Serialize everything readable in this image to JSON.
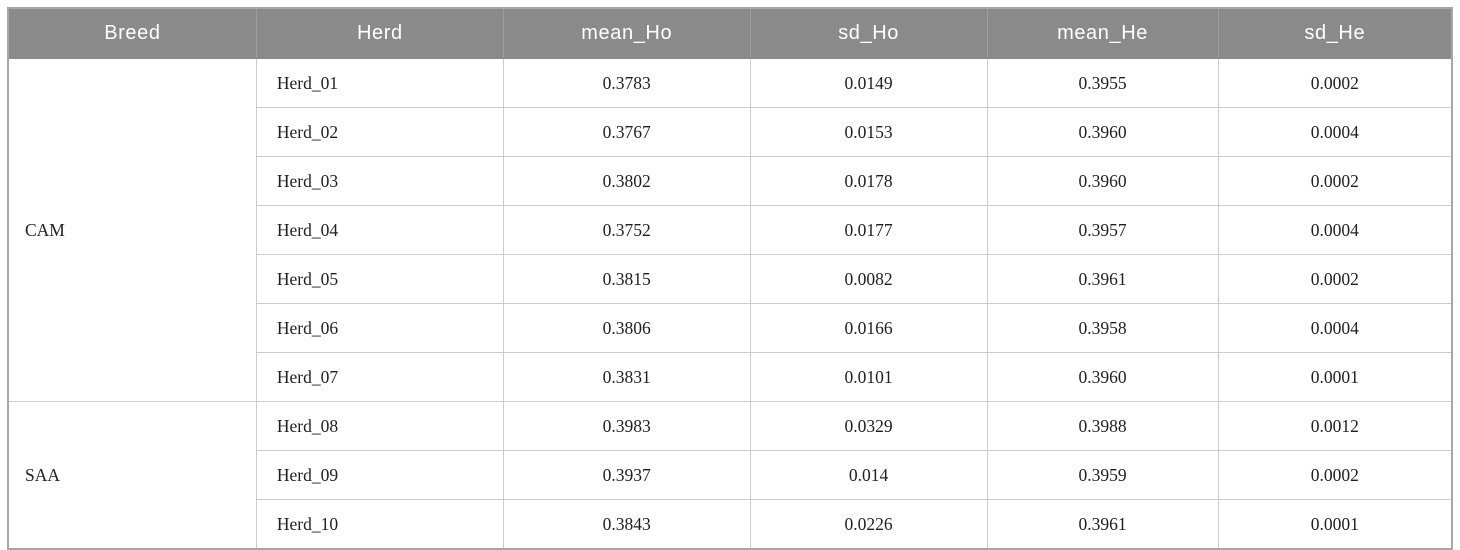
{
  "table": {
    "columns": [
      "Breed",
      "Herd",
      "mean_Ho",
      "sd_Ho",
      "mean_He",
      "sd_He"
    ],
    "groups": [
      {
        "breed": "CAM",
        "rows": [
          {
            "herd": "Herd_01",
            "mean_ho": "0.3783",
            "sd_ho": "0.0149",
            "mean_he": "0.3955",
            "sd_he": "0.0002"
          },
          {
            "herd": "Herd_02",
            "mean_ho": "0.3767",
            "sd_ho": "0.0153",
            "mean_he": "0.3960",
            "sd_he": "0.0004"
          },
          {
            "herd": "Herd_03",
            "mean_ho": "0.3802",
            "sd_ho": "0.0178",
            "mean_he": "0.3960",
            "sd_he": "0.0002"
          },
          {
            "herd": "Herd_04",
            "mean_ho": "0.3752",
            "sd_ho": "0.0177",
            "mean_he": "0.3957",
            "sd_he": "0.0004"
          },
          {
            "herd": "Herd_05",
            "mean_ho": "0.3815",
            "sd_ho": "0.0082",
            "mean_he": "0.3961",
            "sd_he": "0.0002"
          },
          {
            "herd": "Herd_06",
            "mean_ho": "0.3806",
            "sd_ho": "0.0166",
            "mean_he": "0.3958",
            "sd_he": "0.0004"
          },
          {
            "herd": "Herd_07",
            "mean_ho": "0.3831",
            "sd_ho": "0.0101",
            "mean_he": "0.3960",
            "sd_he": "0.0001"
          }
        ]
      },
      {
        "breed": "SAA",
        "rows": [
          {
            "herd": "Herd_08",
            "mean_ho": "0.3983",
            "sd_ho": "0.0329",
            "mean_he": "0.3988",
            "sd_he": "0.0012"
          },
          {
            "herd": "Herd_09",
            "mean_ho": "0.3937",
            "sd_ho": "0.014",
            "mean_he": "0.3959",
            "sd_he": "0.0002"
          },
          {
            "herd": "Herd_10",
            "mean_ho": "0.3843",
            "sd_ho": "0.0226",
            "mean_he": "0.3961",
            "sd_he": "0.0001"
          }
        ]
      }
    ]
  },
  "colors": {
    "header_bg": "#8a8a8a",
    "header_text": "#ffffff",
    "cell_border": "#cbcbcb",
    "group_border": "#9a9a9a",
    "outer_border": "#a6a6a6",
    "body_text": "#1f1f1f"
  }
}
